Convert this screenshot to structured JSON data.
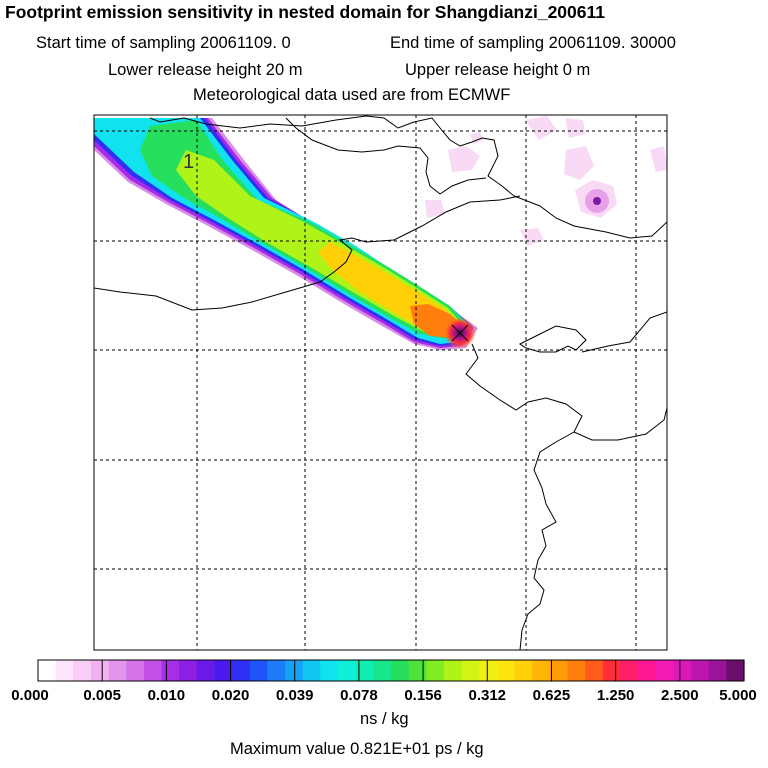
{
  "header": {
    "title": "Footprint emission sensitivity in nested domain for Shangdianzi_200611",
    "start_label": "Start time of sampling 20061109.    0",
    "end_label": "End time of sampling 20061109. 30000",
    "lower_label": "Lower release height   20 m",
    "upper_label": "Upper release height    0 m",
    "met_label": "Meteorological data used are from ECMWF"
  },
  "map": {
    "contour_label": "1"
  },
  "colorbar": {
    "ticks": [
      "0.000",
      "0.005",
      "0.010",
      "0.020",
      "0.039",
      "0.078",
      "0.156",
      "0.312",
      "0.625",
      "1.250",
      "2.500",
      "5.000"
    ],
    "colors": [
      "#ffffff",
      "#fde6fb",
      "#f8cdf6",
      "#f2b2f1",
      "#e395ec",
      "#d673e8",
      "#c24fe6",
      "#a72de6",
      "#8d1ee6",
      "#6a19e8",
      "#4b1aef",
      "#2f2ff6",
      "#1f55f8",
      "#1e7cf8",
      "#17a2f5",
      "#12c6f2",
      "#10e3ee",
      "#0ff0d6",
      "#11ecb0",
      "#18e68a",
      "#25df5d",
      "#4fe33a",
      "#82ec22",
      "#b0f318",
      "#d2f414",
      "#f0f012",
      "#fde40c",
      "#ffcf08",
      "#ffb707",
      "#ff9c08",
      "#ff7e0e",
      "#ff5b1b",
      "#ff2e3a",
      "#ff1e6a",
      "#ff1a93",
      "#f21cb2",
      "#da1ab8",
      "#bd16b0",
      "#9a149a",
      "#6b0f6d"
    ]
  },
  "footer": {
    "units": "ns / kg",
    "max_value": "Maximum value  0.821E+01 ps / kg"
  }
}
